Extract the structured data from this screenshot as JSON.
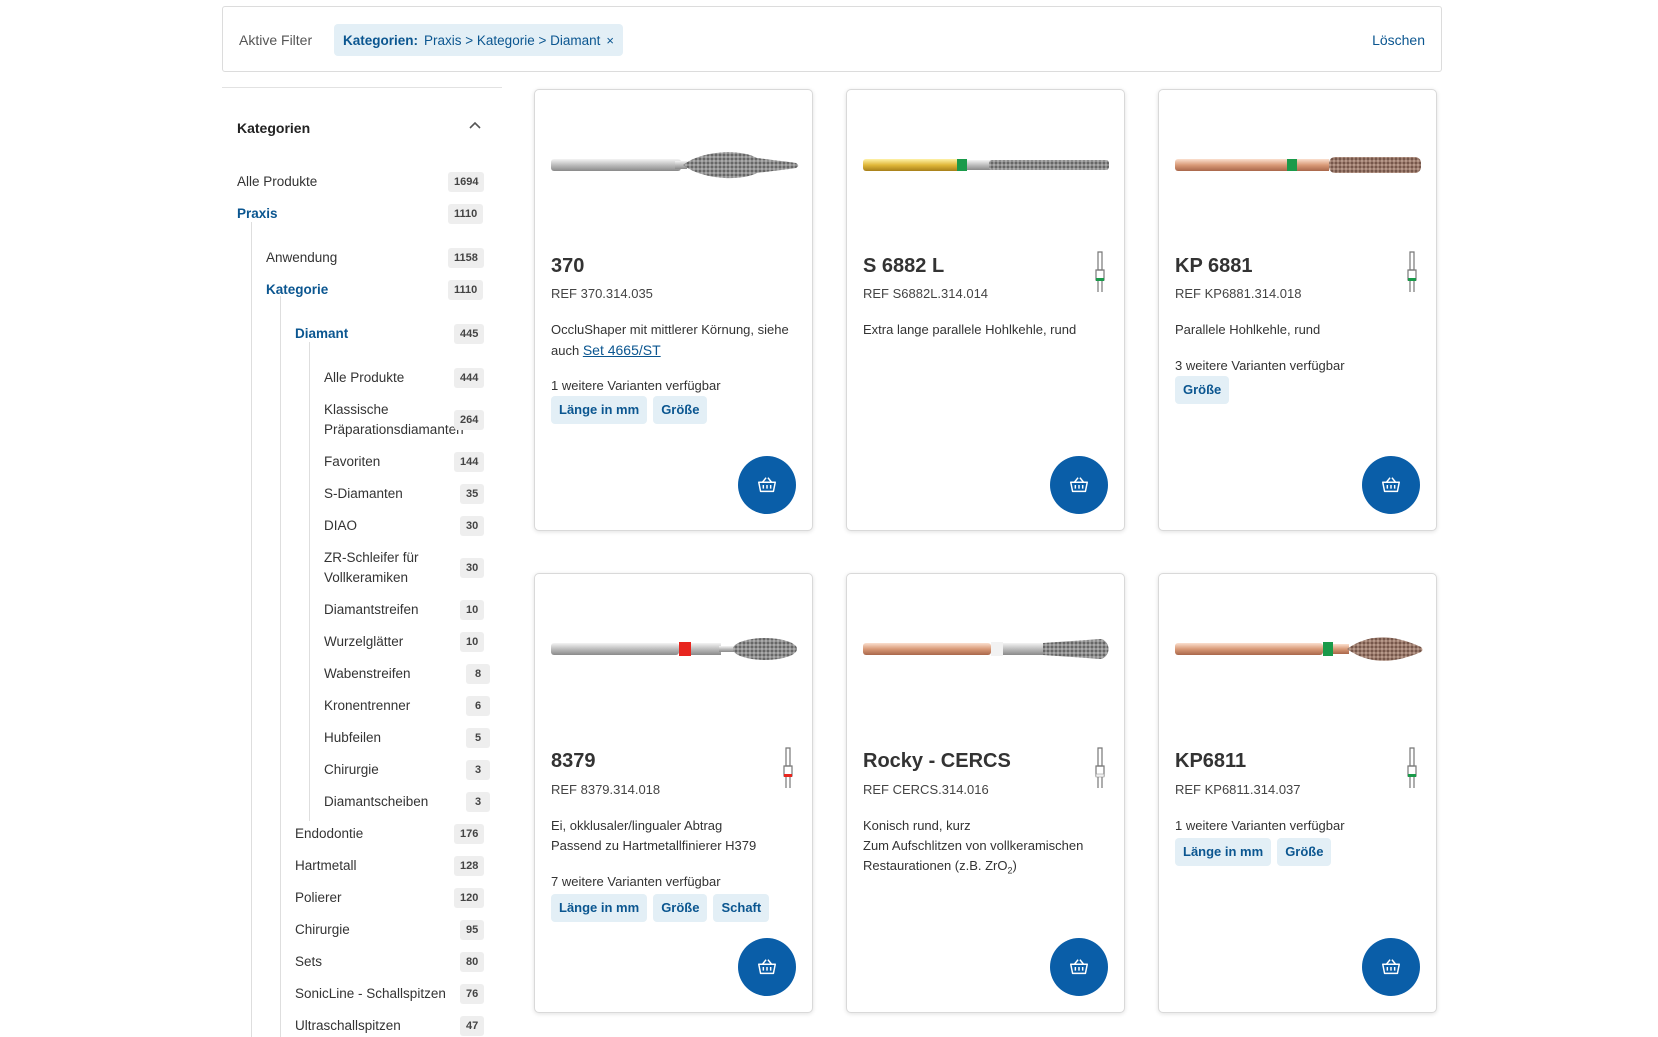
{
  "filter": {
    "label": "Aktive Filter",
    "chip_key": "Kategorien:",
    "chip_value": "Praxis > Kategorie > Diamant",
    "chip_close": "×",
    "clear": "Löschen"
  },
  "sidebar": {
    "heading": "Kategorien",
    "items": [
      {
        "label": "Alle Produkte",
        "count": "1694"
      },
      {
        "label": "Praxis",
        "count": "1110"
      },
      {
        "label": "Anwendung",
        "count": "1158"
      },
      {
        "label": "Kategorie",
        "count": "1110"
      },
      {
        "label": "Diamant",
        "count": "445"
      },
      {
        "label": "Alle Produkte",
        "count": "444"
      },
      {
        "label": "Klassische",
        "label2": "Präparationsdiamanten",
        "count": "264"
      },
      {
        "label": "Favoriten",
        "count": "144"
      },
      {
        "label": "S-Diamanten",
        "count": "35"
      },
      {
        "label": "DIAO",
        "count": "30"
      },
      {
        "label": "ZR-Schleifer für",
        "label2": "Vollkeramiken",
        "count": "30"
      },
      {
        "label": "Diamantstreifen",
        "count": "10"
      },
      {
        "label": "Wurzelglätter",
        "count": "10"
      },
      {
        "label": "Wabenstreifen",
        "count": "8"
      },
      {
        "label": "Kronentrenner",
        "count": "6"
      },
      {
        "label": "Hubfeilen",
        "count": "5"
      },
      {
        "label": "Chirurgie",
        "count": "3"
      },
      {
        "label": "Diamantscheiben",
        "count": "3"
      },
      {
        "label": "Endodontie",
        "count": "176"
      },
      {
        "label": "Hartmetall",
        "count": "128"
      },
      {
        "label": "Polierer",
        "count": "120"
      },
      {
        "label": "Chirurgie",
        "count": "95"
      },
      {
        "label": "Sets",
        "count": "80"
      },
      {
        "label": "SonicLine - Schallspitzen",
        "count": "76"
      },
      {
        "label": "Ultraschallspitzen",
        "count": "47"
      }
    ]
  },
  "products": [
    {
      "title": "370",
      "ref": "REF 370.314.035",
      "desc": "OccluShaper mit mittlerer Körnung, siehe auch",
      "link": "Set 4665/ST",
      "variants": "1 weitere Varianten verfügbar",
      "tags": [
        "Länge in mm",
        "Größe"
      ]
    },
    {
      "title": "S 6882 L",
      "ref": "REF S6882L.314.014",
      "desc": "Extra lange parallele Hohlkehle, rund"
    },
    {
      "title": "KP 6881",
      "ref": "REF KP6881.314.018",
      "desc": "Parallele Hohlkehle, rund",
      "variants": "3 weitere Varianten verfügbar",
      "tags": [
        "Größe"
      ]
    },
    {
      "title": "8379",
      "ref": "REF 8379.314.018",
      "desc1": "Ei, okklusaler/lingualer Abtrag",
      "desc2": "Passend zu Hartmetallfinierer H379",
      "variants": "7 weitere Varianten verfügbar",
      "tags": [
        "Länge in mm",
        "Größe",
        "Schaft"
      ]
    },
    {
      "title": "Rocky - CERCS",
      "ref": "REF CERCS.314.016",
      "desc1": "Konisch rund, kurz",
      "desc2": "Zum Aufschlitzen von vollkeramischen",
      "desc3a": "Restaurationen (z.B. ZrO",
      "desc3sub": "2",
      "desc3b": ")"
    },
    {
      "title": "KP6811",
      "ref": "REF KP6811.314.037",
      "variants": "1 weitere Varianten verfügbar",
      "tags": [
        "Länge in mm",
        "Größe"
      ]
    }
  ],
  "colors": {
    "brand_blue": "#0a5ea8",
    "link_blue": "#0b5690",
    "tag_bg": "#e3eff6",
    "ring_green": "#1a9a4a",
    "ring_red": "#e8261f",
    "ring_white": "#f2f2f2"
  },
  "icons": {
    "chip_close": "close-icon",
    "sidebar_toggle": "chevron-up-icon",
    "cart": "basket-icon",
    "grit": "instrument-grit-icon"
  }
}
